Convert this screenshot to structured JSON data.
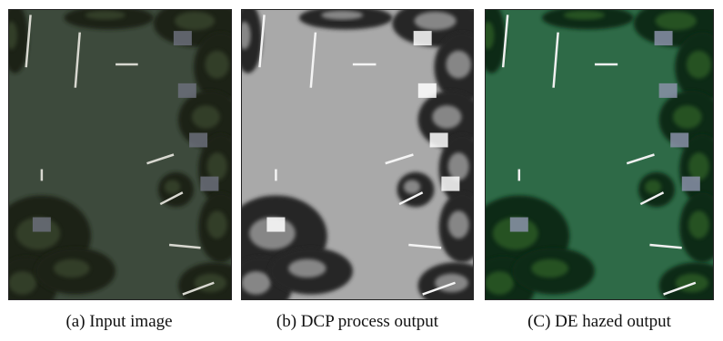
{
  "figures": [
    {
      "caption": "(a) Input image"
    },
    {
      "caption": "(b) DCP process output"
    },
    {
      "caption": "(C) DE hazed output"
    }
  ]
}
